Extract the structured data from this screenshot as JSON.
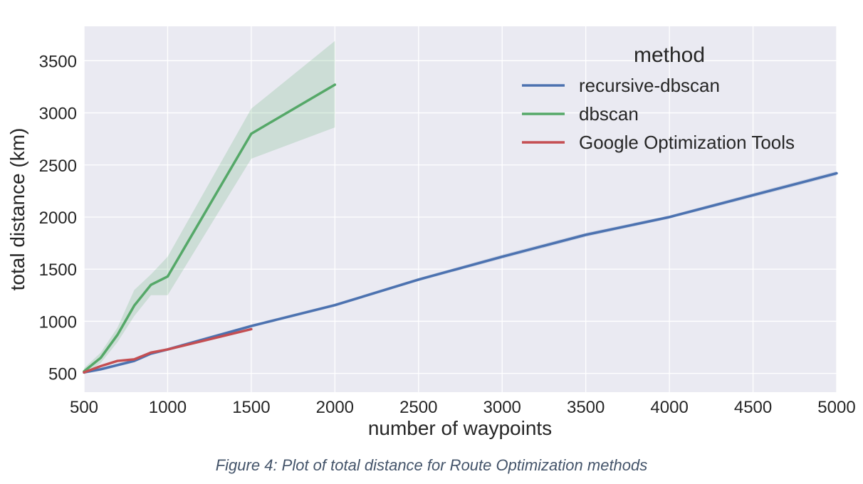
{
  "caption": "Figure 4: Plot of total distance for Route Optimization methods",
  "chart_data": {
    "type": "line",
    "title": "",
    "xlabel": "number of waypoints",
    "ylabel": "total distance (km)",
    "xlim": [
      500,
      5000
    ],
    "ylim": [
      320,
      3830
    ],
    "xticks": [
      500,
      1000,
      1500,
      2000,
      2500,
      3000,
      3500,
      4000,
      4500,
      5000
    ],
    "yticks": [
      500,
      1000,
      1500,
      2000,
      2500,
      3000,
      3500
    ],
    "grid": true,
    "legend": {
      "title": "method",
      "placement": "top-right"
    },
    "series": [
      {
        "name": "recursive-dbscan",
        "color": "#4c72b0",
        "x": [
          500,
          600,
          700,
          800,
          900,
          1000,
          1500,
          2000,
          2500,
          3000,
          3500,
          4000,
          4500,
          5000
        ],
        "y": [
          510,
          540,
          580,
          620,
          690,
          730,
          955,
          1155,
          1400,
          1620,
          1830,
          2000,
          2210,
          2420
        ],
        "lower": [
          495,
          525,
          565,
          605,
          675,
          715,
          940,
          1140,
          1385,
          1600,
          1810,
          1985,
          2190,
          2400
        ],
        "upper": [
          525,
          555,
          595,
          635,
          705,
          745,
          970,
          1170,
          1415,
          1640,
          1850,
          2015,
          2230,
          2440
        ]
      },
      {
        "name": "dbscan",
        "color": "#55a868",
        "x": [
          500,
          600,
          700,
          800,
          900,
          1000,
          1500,
          2000
        ],
        "y": [
          520,
          650,
          870,
          1150,
          1350,
          1430,
          2800,
          3270
        ],
        "lower": [
          490,
          600,
          800,
          1050,
          1250,
          1250,
          2560,
          2860
        ],
        "upper": [
          550,
          700,
          940,
          1300,
          1450,
          1620,
          3040,
          3690
        ]
      },
      {
        "name": "Google Optimization Tools",
        "color": "#c44e52",
        "x": [
          500,
          600,
          700,
          800,
          900,
          1000,
          1500
        ],
        "y": [
          510,
          570,
          620,
          635,
          700,
          730,
          925
        ],
        "lower": [
          500,
          560,
          610,
          625,
          690,
          720,
          915
        ],
        "upper": [
          520,
          580,
          630,
          645,
          710,
          740,
          935
        ]
      }
    ]
  }
}
